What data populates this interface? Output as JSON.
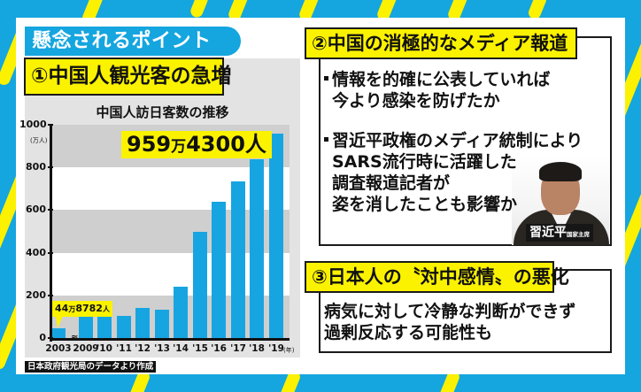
{
  "colors": {
    "background_blue": "#15a5df",
    "stripe_yellow": "#fbf100",
    "highlight_yellow": "#fbf200",
    "bar_blue": "#17a5e2",
    "panel_white": "#ffffff",
    "chart_bg_gray": "#e3e3e3",
    "band_gray": "#cfcfcf"
  },
  "header": {
    "title": "懸念されるポイント"
  },
  "section1": {
    "heading": "①中国人観光客の急増",
    "chart_title": "中国人訪日客数の推移",
    "callout_latest": {
      "num1": "959",
      "unit1": "万",
      "num2": "4300",
      "unit2": "人"
    },
    "callout_first": {
      "num1": "44",
      "unit1": "万",
      "num2": "8782",
      "unit2": "人"
    },
    "y_unit": "(万人)",
    "x_unit": "(年)",
    "break_mark": "≈",
    "source": "日本政府観光局のデータより作成"
  },
  "chart_data": {
    "type": "bar",
    "title": "中国人訪日客数の推移",
    "xlabel": "",
    "ylabel": "(万人)",
    "x_unit": "(年)",
    "categories": [
      "2003",
      "2009",
      "'10",
      "'11",
      "'12",
      "'13",
      "'14",
      "'15",
      "'16",
      "'17",
      "'18",
      "'19"
    ],
    "values": [
      44.9,
      101,
      141,
      104,
      143,
      131,
      241,
      499,
      637,
      736,
      838,
      959.4
    ],
    "ylim": [
      0,
      1000
    ],
    "yticks": [
      0,
      200,
      400,
      600,
      800,
      1000
    ],
    "grid": "alternating horizontal bands",
    "axis_break_between": [
      "2003",
      "2009"
    ],
    "annotations": [
      {
        "category": "2003",
        "text": "44万8782人"
      },
      {
        "category": "'19",
        "text": "959万4300人"
      }
    ],
    "source": "日本政府観光局のデータより作成"
  },
  "section2": {
    "heading": "②中国の消極的なメディア報道",
    "bullets": [
      {
        "lines": [
          "情報を的確に公表していれば",
          "今より感染を防げたか"
        ]
      },
      {
        "lines": [
          "習近平政権のメディア統制により",
          "SARS流行時に活躍した",
          "調査報道記者が",
          "姿を消したことも影響か"
        ]
      }
    ],
    "photo_caption": {
      "name": "習近平",
      "title": "国家主席"
    }
  },
  "section3": {
    "heading": "③日本人の〝対中感情〟の悪化",
    "lines": [
      "病気に対して冷静な判断ができず",
      "過剰反応する可能性も"
    ]
  }
}
